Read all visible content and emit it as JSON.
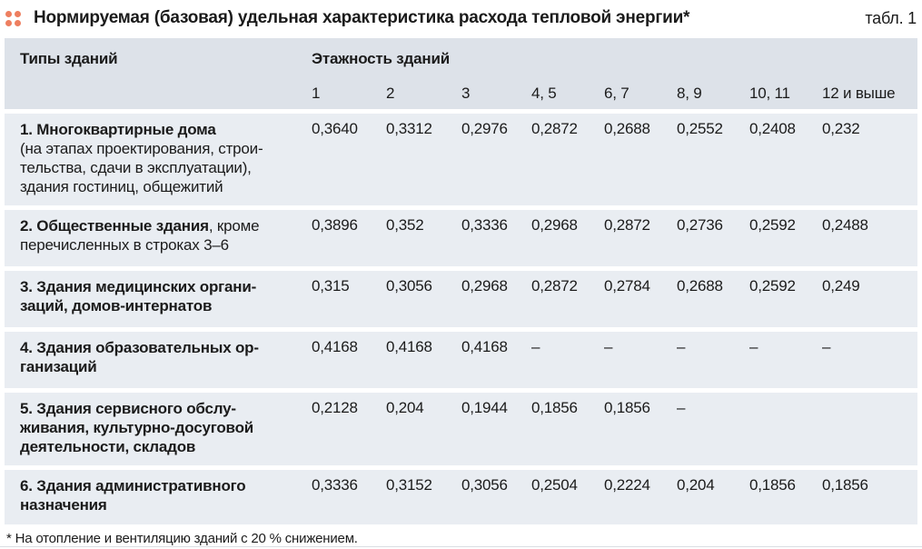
{
  "colors": {
    "accent": "#ee7f60",
    "header_bg": "#dde2e9",
    "row_bg": "#e9edf2",
    "text": "#1b1b1b"
  },
  "header": {
    "title": "Нормируемая (базовая) удельная характеристика расхода тепловой энергии*",
    "table_ref": "табл. 1"
  },
  "table": {
    "col1_header": "Типы зданий",
    "group_header": "Этажность зданий",
    "columns": [
      "1",
      "2",
      "3",
      "4, 5",
      "6, 7",
      "8, 9",
      "10, 11",
      "12 и выше"
    ],
    "rows": [
      {
        "name_bold": "1. Многоквартирные дома",
        "name_normal": "\n(на этапах проектирования, строи-\nтельства, сдачи в эксплуатации),\nздания гостиниц, общежитий",
        "values": [
          "0,3640",
          "0,3312",
          "0,2976",
          "0,2872",
          "0,2688",
          "0,2552",
          "0,2408",
          "0,232"
        ]
      },
      {
        "name_bold": "2. Общественные здания",
        "name_normal": ", кроме\nперечисленных в строках 3–6",
        "values": [
          "0,3896",
          "0,352",
          "0,3336",
          "0,2968",
          "0,2872",
          "0,2736",
          "0,2592",
          "0,2488"
        ]
      },
      {
        "name_bold": "3. Здания медицинских органи-\nзаций, домов-интернатов",
        "name_normal": "",
        "values": [
          "0,315",
          "0,3056",
          "0,2968",
          "0,2872",
          "0,2784",
          "0,2688",
          "0,2592",
          "0,249"
        ]
      },
      {
        "name_bold": "4. Здания образовательных ор-\nганизаций",
        "name_normal": "",
        "values": [
          "0,4168",
          "0,4168",
          "0,4168",
          "–",
          "–",
          "–",
          "–",
          "–"
        ]
      },
      {
        "name_bold": "5. Здания сервисного обслу-\nживания, культурно-досуговой\nдеятельности, складов",
        "name_normal": "",
        "values": [
          "0,2128",
          "0,204",
          "0,1944",
          "0,1856",
          "0,1856",
          "–",
          "",
          ""
        ]
      },
      {
        "name_bold": "6. Здания административного\nназначения",
        "name_normal": "",
        "values": [
          "0,3336",
          "0,3152",
          "0,3056",
          "0,2504",
          "0,2224",
          "0,204",
          "0,1856",
          "0,1856"
        ]
      }
    ]
  },
  "footnote": "* На отопление и вентиляцию зданий с 20 % снижением."
}
